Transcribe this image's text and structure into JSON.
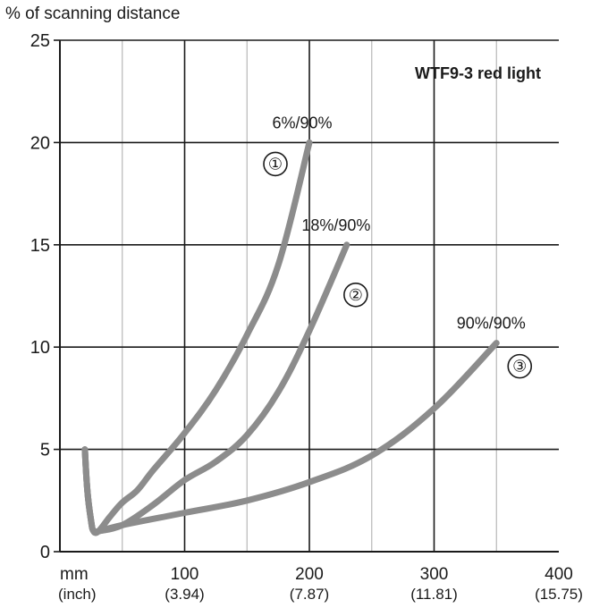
{
  "chart_data": {
    "type": "line",
    "title": "WTF9-3 red light",
    "ylabel": "% of scanning distance",
    "xlabel": "mm",
    "xlabel_sub": "(inch)",
    "xlim": [
      0,
      400
    ],
    "ylim": [
      0,
      25
    ],
    "x_ticks": [
      {
        "value": 100,
        "label": "100",
        "sub": "(3.94)"
      },
      {
        "value": 200,
        "label": "200",
        "sub": "(7.87)"
      },
      {
        "value": 300,
        "label": "300",
        "sub": "(11.81)"
      },
      {
        "value": 400,
        "label": "400",
        "sub": "(15.75)"
      }
    ],
    "y_ticks": [
      {
        "value": 0,
        "label": "0"
      },
      {
        "value": 5,
        "label": "5"
      },
      {
        "value": 10,
        "label": "10"
      },
      {
        "value": 15,
        "label": "15"
      },
      {
        "value": 20,
        "label": "20"
      },
      {
        "value": 25,
        "label": "25"
      }
    ],
    "grid_x": [
      50,
      100,
      150,
      200,
      250,
      300,
      350
    ],
    "grid_y": [
      5,
      10,
      15,
      20
    ],
    "grid": true,
    "line_color": "#8c8c8c",
    "series": [
      {
        "name": "6%/90%",
        "marker": "①",
        "points": [
          [
            20,
            5
          ],
          [
            22,
            3
          ],
          [
            25,
            1.5
          ],
          [
            27,
            1
          ],
          [
            31,
            1
          ],
          [
            40,
            1.7
          ],
          [
            50,
            2.4
          ],
          [
            62,
            3.0
          ],
          [
            75,
            4.0
          ],
          [
            100,
            5.8
          ],
          [
            125,
            7.9
          ],
          [
            150,
            10.6
          ],
          [
            175,
            14.0
          ],
          [
            200,
            20.0
          ]
        ]
      },
      {
        "name": "18%/90%",
        "marker": "②",
        "points": [
          [
            20,
            5
          ],
          [
            22,
            3
          ],
          [
            25,
            1.5
          ],
          [
            27,
            1
          ],
          [
            31,
            1
          ],
          [
            50,
            1.3
          ],
          [
            75,
            2.3
          ],
          [
            100,
            3.5
          ],
          [
            125,
            4.4
          ],
          [
            150,
            5.7
          ],
          [
            175,
            7.8
          ],
          [
            200,
            10.8
          ],
          [
            230,
            15.0
          ]
        ]
      },
      {
        "name": "90%/90%",
        "marker": "③",
        "points": [
          [
            20,
            5
          ],
          [
            22,
            3
          ],
          [
            25,
            1.5
          ],
          [
            27,
            1
          ],
          [
            31,
            1
          ],
          [
            50,
            1.3
          ],
          [
            100,
            1.9
          ],
          [
            150,
            2.5
          ],
          [
            200,
            3.4
          ],
          [
            250,
            4.7
          ],
          [
            300,
            7.0
          ],
          [
            350,
            10.2
          ]
        ]
      }
    ]
  }
}
